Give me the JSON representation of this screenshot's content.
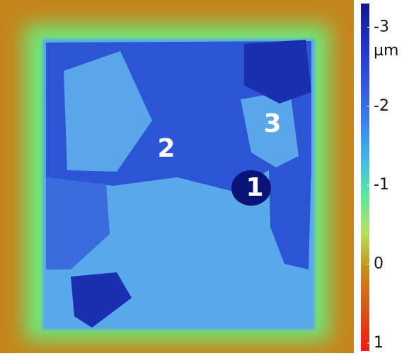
{
  "image": {
    "region_labels": [
      "1",
      "2",
      "3"
    ]
  },
  "colorbar": {
    "unit": "µm",
    "lim": [
      -3.3,
      1.1
    ],
    "ticks": [
      -3,
      -2,
      -1,
      0,
      1
    ]
  }
}
